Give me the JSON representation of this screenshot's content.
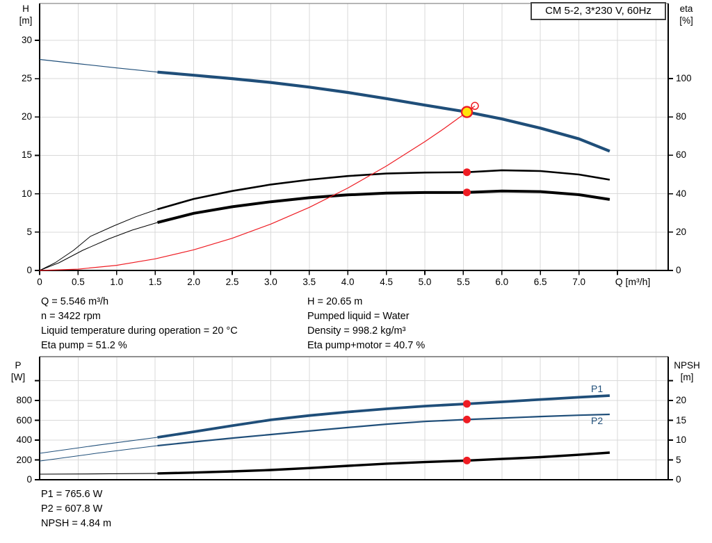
{
  "title_box": {
    "label": "CM 5-2, 3*230 V, 60Hz"
  },
  "colors": {
    "curve_blue": "#1f4e79",
    "curve_black": "#000000",
    "curve_red": "#ee1c23",
    "duty_yellow": "#ffe40a",
    "grid": "#d9d9d9",
    "axis": "#000000",
    "top_border_1": "#6e6e6e",
    "top_border_2": "#8f8f8f",
    "box_border": "#404040"
  },
  "stats": {
    "top_left": [
      "Q = 5.546 m³/h",
      "n = 3422 rpm",
      "Liquid temperature during operation = 20 °C",
      "Eta pump = 51.2 %"
    ],
    "top_right": [
      "H = 20.65 m",
      "Pumped liquid = Water",
      "Density = 998.2 kg/m³",
      "Eta pump+motor = 40.7 %"
    ],
    "bottom": [
      "P1 = 765.6 W",
      "P2 = 607.8 W",
      "NPSH = 4.84 m"
    ]
  },
  "chart_data": [
    {
      "type": "line",
      "title": "CM 5-2, 3*230 V, 60Hz",
      "x_axis": {
        "label": "Q [m³/h]",
        "min": 0,
        "max": 8.16,
        "grid_values": [
          0.5,
          1,
          1.5,
          2,
          2.5,
          3,
          3.5,
          4,
          4.5,
          5,
          5.5,
          6,
          6.5,
          7,
          7.5,
          8
        ],
        "ticks": [
          {
            "v": 0,
            "label": "0"
          },
          {
            "v": 0.5,
            "label": "0.5"
          },
          {
            "v": 1,
            "label": "1.0"
          },
          {
            "v": 1.5,
            "label": "1.5"
          },
          {
            "v": 2,
            "label": "2.0"
          },
          {
            "v": 2.5,
            "label": "2.5"
          },
          {
            "v": 3,
            "label": "3.0"
          },
          {
            "v": 3.5,
            "label": "3.5"
          },
          {
            "v": 4,
            "label": "4.0"
          },
          {
            "v": 4.5,
            "label": "4.5"
          },
          {
            "v": 5,
            "label": "5.0"
          },
          {
            "v": 5.5,
            "label": "5.5"
          },
          {
            "v": 6,
            "label": "6.0"
          },
          {
            "v": 6.5,
            "label": "6.5"
          },
          {
            "v": 7,
            "label": "7.0"
          },
          {
            "v": 7.5,
            "label": ""
          }
        ]
      },
      "y_left": {
        "label": "H",
        "unit": "[m]",
        "min": 0,
        "max": 34.8,
        "ticks": [
          {
            "v": 0,
            "label": "0",
            "grid": false
          },
          {
            "v": 5,
            "label": "5",
            "grid": true
          },
          {
            "v": 10,
            "label": "10",
            "grid": true
          },
          {
            "v": 15,
            "label": "15",
            "grid": true
          },
          {
            "v": 20,
            "label": "20",
            "grid": true
          },
          {
            "v": 25,
            "label": "25",
            "grid": true
          },
          {
            "v": 30,
            "label": "30",
            "grid": true
          }
        ]
      },
      "y_right": {
        "label": "eta",
        "unit": "[%]",
        "min": 0,
        "max": 139,
        "ticks": [
          {
            "v": 0,
            "label": "0"
          },
          {
            "v": 20,
            "label": "20"
          },
          {
            "v": 40,
            "label": "40"
          },
          {
            "v": 60,
            "label": "60"
          },
          {
            "v": 80,
            "label": "80"
          },
          {
            "v": 100,
            "label": "100"
          }
        ]
      },
      "series": [
        {
          "name": "pump-curve-H",
          "axis": "left",
          "color": "#1f4e79",
          "width": 4.2,
          "thin_width": 1.2,
          "bold_from": 1.53,
          "points": [
            [
              0,
              27.5
            ],
            [
              0.5,
              26.95
            ],
            [
              1,
              26.4
            ],
            [
              1.53,
              25.85
            ],
            [
              2,
              25.45
            ],
            [
              2.5,
              25.0
            ],
            [
              3,
              24.5
            ],
            [
              3.5,
              23.9
            ],
            [
              4,
              23.2
            ],
            [
              4.5,
              22.4
            ],
            [
              5,
              21.55
            ],
            [
              5.546,
              20.65
            ],
            [
              6,
              19.75
            ],
            [
              6.5,
              18.55
            ],
            [
              7,
              17.15
            ],
            [
              7.4,
              15.55
            ]
          ]
        },
        {
          "name": "eta-pump",
          "axis": "right",
          "color": "#000000",
          "width": 2.6,
          "thin_width": 1,
          "bold_from": 1.53,
          "points": [
            [
              0,
              0
            ],
            [
              0.2,
              4
            ],
            [
              0.44,
              10.5
            ],
            [
              0.66,
              17.8
            ],
            [
              0.96,
              23.2
            ],
            [
              1.25,
              28
            ],
            [
              1.53,
              31.9
            ],
            [
              2,
              37.3
            ],
            [
              2.5,
              41.4
            ],
            [
              3,
              44.8
            ],
            [
              3.5,
              47.3
            ],
            [
              4,
              49.2
            ],
            [
              4.5,
              50.5
            ],
            [
              5,
              51.0
            ],
            [
              5.546,
              51.2
            ],
            [
              6,
              52.2
            ],
            [
              6.5,
              51.8
            ],
            [
              7,
              50.0
            ],
            [
              7.4,
              47.3
            ]
          ]
        },
        {
          "name": "eta-pump-motor",
          "axis": "right",
          "color": "#000000",
          "width": 4,
          "thin_width": 1,
          "bold_from": 1.53,
          "points": [
            [
              0,
              0
            ],
            [
              0.25,
              4
            ],
            [
              0.56,
              10.5
            ],
            [
              0.9,
              16.5
            ],
            [
              1.2,
              21
            ],
            [
              1.53,
              25
            ],
            [
              2,
              29.8
            ],
            [
              2.5,
              33.2
            ],
            [
              3,
              35.8
            ],
            [
              3.5,
              37.9
            ],
            [
              4,
              39.4
            ],
            [
              4.5,
              40.3
            ],
            [
              5,
              40.6
            ],
            [
              5.546,
              40.7
            ],
            [
              6,
              41.4
            ],
            [
              6.5,
              41.1
            ],
            [
              7,
              39.5
            ],
            [
              7.4,
              37.0
            ]
          ]
        },
        {
          "name": "system-curve",
          "axis": "left",
          "color": "#ee1c23",
          "width": 1.2,
          "points": [
            [
              0,
              0
            ],
            [
              0.5,
              0.17
            ],
            [
              1,
              0.67
            ],
            [
              1.5,
              1.51
            ],
            [
              2,
              2.69
            ],
            [
              2.5,
              4.2
            ],
            [
              3,
              6.04
            ],
            [
              3.5,
              8.22
            ],
            [
              4,
              10.74
            ],
            [
              4.5,
              13.6
            ],
            [
              5,
              16.79
            ],
            [
              5.25,
              18.5
            ],
            [
              5.546,
              20.65
            ],
            [
              5.65,
              21.45
            ]
          ]
        }
      ],
      "markers": [
        {
          "name": "duty-point-marker",
          "x": 5.546,
          "value": 20.65,
          "axis": "left",
          "fill": "#ffe40a",
          "stroke": "#ee1c23",
          "stroke_width": 2.4,
          "r": 7.5
        },
        {
          "name": "rated-point-open-marker",
          "x": 5.65,
          "value": 21.45,
          "axis": "left",
          "fill": "none",
          "stroke": "#ee1c23",
          "stroke_width": 1.5,
          "r": 5
        },
        {
          "name": "eta-pump-point-marker",
          "x": 5.546,
          "value": 51.2,
          "axis": "right",
          "fill": "#ee1c23",
          "r": 5.5
        },
        {
          "name": "eta-pump-motor-point-marker",
          "x": 5.546,
          "value": 40.7,
          "axis": "right",
          "fill": "#ee1c23",
          "r": 5.5
        }
      ]
    },
    {
      "type": "line",
      "title": "Power and NPSH curves",
      "x_axis": {
        "label": "",
        "min": 0,
        "max": 8.16,
        "grid_values": [
          0.5,
          1,
          1.5,
          2,
          2.5,
          3,
          3.5,
          4,
          4.5,
          5,
          5.5,
          6,
          6.5,
          7,
          7.5,
          8
        ],
        "ticks": []
      },
      "y_left": {
        "label": "P",
        "unit": "[W]",
        "min": 0,
        "max": 1245,
        "ticks": [
          {
            "v": 0,
            "label": "0",
            "grid": false
          },
          {
            "v": 200,
            "label": "200",
            "grid": true
          },
          {
            "v": 400,
            "label": "400",
            "grid": true
          },
          {
            "v": 600,
            "label": "600",
            "grid": true
          },
          {
            "v": 800,
            "label": "800",
            "grid": true
          },
          {
            "v": 1000,
            "label": "",
            "grid": true
          }
        ]
      },
      "y_right": {
        "label": "NPSH",
        "unit": "[m]",
        "min": 0,
        "max": 31,
        "ticks": [
          {
            "v": 0,
            "label": "0"
          },
          {
            "v": 5,
            "label": "5"
          },
          {
            "v": 10,
            "label": "10"
          },
          {
            "v": 15,
            "label": "15"
          },
          {
            "v": 20,
            "label": "20"
          },
          {
            "v": 25,
            "label": ""
          }
        ]
      },
      "series": [
        {
          "name": "P1",
          "axis": "left",
          "color": "#1f4e79",
          "width": 3.8,
          "thin_width": 1.1,
          "bold_from": 1.53,
          "points": [
            [
              0,
              267
            ],
            [
              0.75,
              349
            ],
            [
              1.53,
              428
            ],
            [
              2,
              484
            ],
            [
              2.5,
              546
            ],
            [
              3,
              604
            ],
            [
              3.5,
              648
            ],
            [
              4,
              684
            ],
            [
              4.5,
              716
            ],
            [
              5,
              743
            ],
            [
              5.546,
              765.6
            ],
            [
              6,
              786
            ],
            [
              6.5,
              810
            ],
            [
              7,
              832
            ],
            [
              7.4,
              849
            ]
          ]
        },
        {
          "name": "P2",
          "axis": "left",
          "color": "#1f4e79",
          "width": 2.2,
          "thin_width": 1,
          "bold_from": 1.53,
          "points": [
            [
              0,
              189
            ],
            [
              0.75,
              268
            ],
            [
              1.53,
              344
            ],
            [
              2,
              382
            ],
            [
              2.5,
              420
            ],
            [
              3,
              456
            ],
            [
              3.5,
              492
            ],
            [
              4,
              527
            ],
            [
              4.5,
              561
            ],
            [
              5,
              588
            ],
            [
              5.546,
              607.8
            ],
            [
              6,
              622
            ],
            [
              6.5,
              638
            ],
            [
              7,
              651
            ],
            [
              7.4,
              660
            ]
          ]
        },
        {
          "name": "NPSH",
          "axis": "right",
          "color": "#000000",
          "width": 3.4,
          "thin_width": 1.1,
          "bold_from": 1.53,
          "points": [
            [
              0,
              1.4
            ],
            [
              0.75,
              1.48
            ],
            [
              1.53,
              1.6
            ],
            [
              2,
              1.8
            ],
            [
              2.5,
              2.1
            ],
            [
              3,
              2.45
            ],
            [
              3.5,
              2.95
            ],
            [
              4,
              3.5
            ],
            [
              4.5,
              4.05
            ],
            [
              5,
              4.45
            ],
            [
              5.546,
              4.84
            ],
            [
              6,
              5.25
            ],
            [
              6.5,
              5.7
            ],
            [
              7,
              6.3
            ],
            [
              7.4,
              6.85
            ]
          ]
        }
      ],
      "series_labels": [
        "P1",
        "P2"
      ],
      "markers": [
        {
          "name": "p1-point-marker",
          "x": 5.546,
          "value": 765.6,
          "axis": "left",
          "fill": "#ee1c23",
          "r": 5.5
        },
        {
          "name": "p2-point-marker",
          "x": 5.546,
          "value": 607.8,
          "axis": "left",
          "fill": "#ee1c23",
          "r": 5.5
        },
        {
          "name": "npsh-point-marker",
          "x": 5.546,
          "value": 4.84,
          "axis": "right",
          "fill": "#ee1c23",
          "r": 5.5
        }
      ]
    }
  ]
}
